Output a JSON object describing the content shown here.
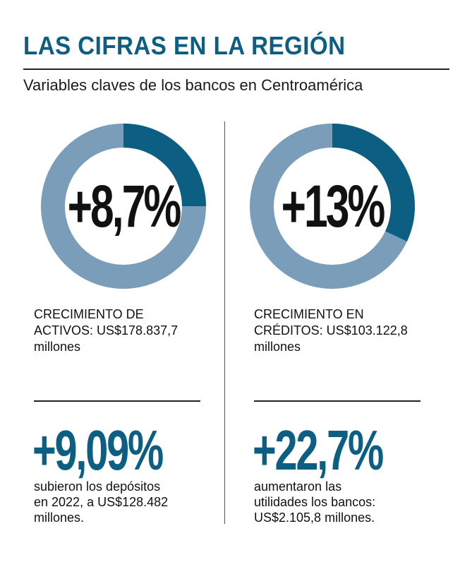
{
  "header": {
    "title": "LAS CIFRAS EN LA REGIÓN",
    "subtitle": "Variables claves de los bancos en Centroamérica"
  },
  "colors": {
    "accent": "#0c5f82",
    "ring_light": "#7a9eb9",
    "ring_dark": "#0c5f82"
  },
  "donuts": [
    {
      "label": "+8,7%",
      "highlight_percent": 25,
      "caption_lines": [
        "CRECIMIENTO DE",
        "ACTIVOS: US$178.837,7",
        "millones"
      ]
    },
    {
      "label": "+13%",
      "highlight_percent": 32,
      "caption_lines": [
        "CRECIMIENTO EN",
        "CRÉDITOS: US$103.122,8",
        "millones"
      ]
    }
  ],
  "stats": [
    {
      "value": "+9,09%",
      "desc_lines": [
        "subieron los depósitos",
        "en 2022, a US$128.482",
        "millones."
      ]
    },
    {
      "value": "+22,7%",
      "desc_lines": [
        "aumentaron las",
        "utilidades los bancos:",
        "US$2.105,8 millones."
      ]
    }
  ]
}
